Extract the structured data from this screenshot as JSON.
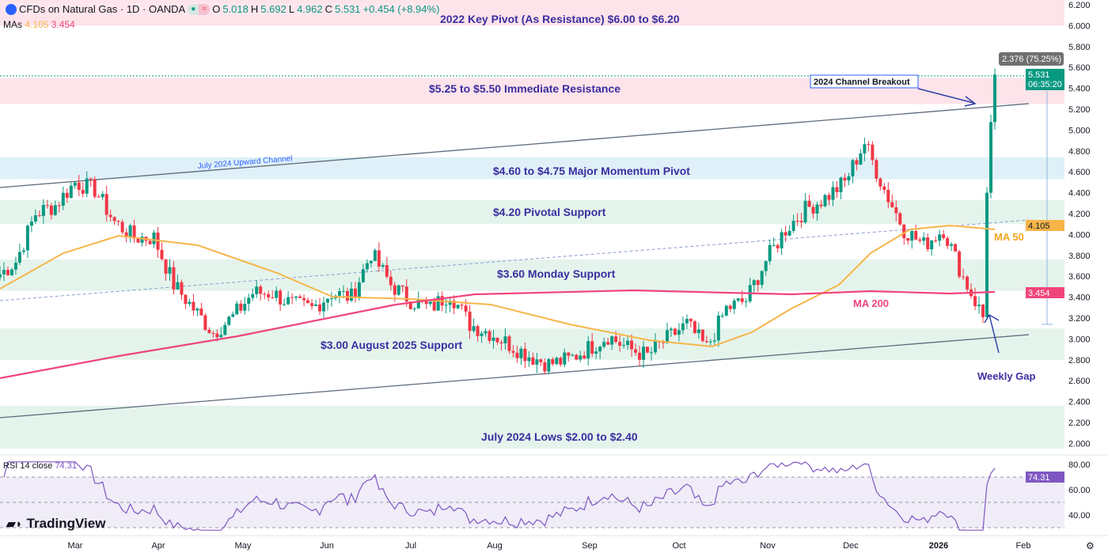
{
  "header": {
    "symbol": "CFDs on Natural Gas · 1D · OANDA",
    "o_label": "O",
    "open": "5.018",
    "h_label": "H",
    "high": "5.692",
    "l_label": "L",
    "low": "4.962",
    "c_label": "C",
    "close": "5.531",
    "change": "+0.454 (+8.94%)"
  },
  "mas": {
    "label": "MAs",
    "ma50": "4.105",
    "ma200": "3.454"
  },
  "rsi": {
    "label": "RSI 14 close",
    "value": "74.31",
    "axis": [
      "80.00",
      "60.00",
      "40.00"
    ],
    "current_tag": "74.31"
  },
  "brand": "TradingView",
  "colors": {
    "up": "#089981",
    "down": "#f23645",
    "ma50": "#f7b54a",
    "ma200": "#f0457a",
    "pink_zone": "#fde3ea",
    "blue_zone": "#dff0f8",
    "green_zone": "#e4f4ec",
    "rsi": "#7e57c2",
    "annotation": "#3a2ea0"
  },
  "chart_data": {
    "type": "candlestick",
    "title": "CFDs on Natural Gas · 1D · OANDA",
    "ylim": [
      1.9,
      6.25
    ],
    "y_ticks": [
      "6.200",
      "6.000",
      "5.800",
      "5.600",
      "5.400",
      "5.200",
      "5.000",
      "4.800",
      "4.600",
      "4.400",
      "4.200",
      "4.000",
      "3.800",
      "3.600",
      "3.400",
      "3.200",
      "3.000",
      "2.800",
      "2.600",
      "2.400",
      "2.200",
      "2.000"
    ],
    "x_ticks": [
      "Mar",
      "Apr",
      "May",
      "Jun",
      "Jul",
      "Aug",
      "Sep",
      "Oct",
      "Nov",
      "Dec",
      "2026",
      "Feb"
    ],
    "weekly_closes": [
      3.59,
      3.74,
      4.2,
      4.28,
      4.5,
      4.43,
      4.12,
      3.97,
      3.97,
      3.52,
      3.29,
      3.06,
      3.21,
      3.44,
      3.44,
      3.33,
      3.29,
      3.44,
      3.4,
      3.82,
      3.52,
      3.37,
      3.29,
      3.44,
      3.14,
      3.06,
      2.95,
      2.84,
      2.76,
      2.8,
      2.91,
      3.03,
      2.91,
      2.84,
      3.0,
      3.14,
      2.91,
      3.29,
      3.37,
      3.75,
      4.05,
      4.24,
      4.35,
      4.5,
      4.88,
      4.43,
      4.05,
      3.9,
      4.05,
      3.59,
      3.21,
      5.53
    ],
    "zones": [
      {
        "label": "2022 Key Pivot (As Resistance) $6.00 to $6.20",
        "from": 6.0,
        "to": 6.25,
        "kind": "pink"
      },
      {
        "label": "$5.25 to $5.50 Immediate Resistance",
        "from": 5.25,
        "to": 5.5,
        "kind": "pink"
      },
      {
        "label": "$4.60 to $4.75 Major Momentum Pivot",
        "from": 4.53,
        "to": 4.74,
        "kind": "blue"
      },
      {
        "label": "$4.20 Pivotal Support",
        "from": 4.1,
        "to": 4.33,
        "kind": "green"
      },
      {
        "label": "$3.60 Monday Support",
        "from": 3.46,
        "to": 3.76,
        "kind": "green"
      },
      {
        "label": "$3.00 August 2025 Support",
        "from": 2.8,
        "to": 3.1,
        "kind": "green"
      },
      {
        "label": "July 2024 Lows $2.00 to $2.40",
        "from": 1.95,
        "to": 2.36,
        "kind": "green"
      }
    ],
    "annotations": {
      "channel": "July 2024 Upward Channel",
      "breakout": "2024 Channel Breakout",
      "ma50": "MA 50",
      "ma200": "MA 200",
      "gap": "Weekly Gap",
      "measure": "2.376 (75.25%)"
    },
    "last_price": "5.531",
    "countdown": "06:35:20",
    "ma50_tag": "4.105",
    "ma200_tag": "3.454"
  }
}
